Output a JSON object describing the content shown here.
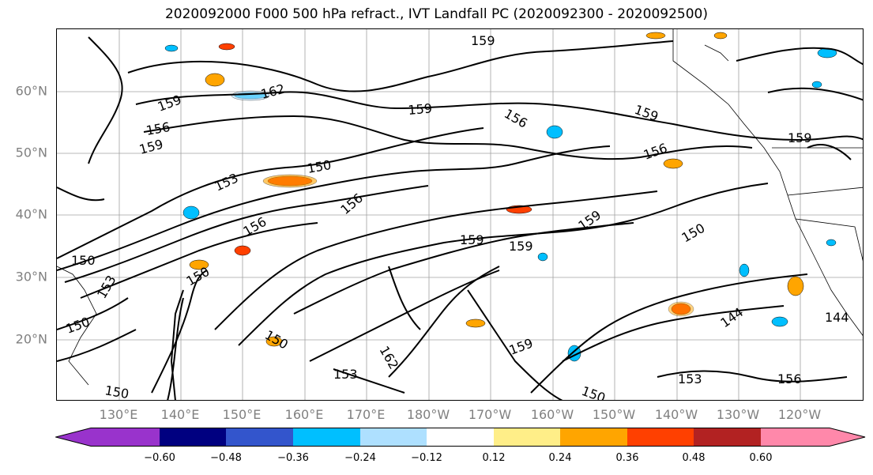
{
  "title": "2020092000 F000 500 hPa refract., IVT Landfall PC (2020092300 - 2020092500)",
  "lat_labels": [
    "60°N",
    "50°N",
    "40°N",
    "30°N",
    "20°N"
  ],
  "lon_labels": [
    "130°E",
    "140°E",
    "150°E",
    "160°E",
    "170°E",
    "180°W",
    "170°W",
    "160°W",
    "150°W",
    "140°W",
    "130°W",
    "120°W"
  ],
  "contour_labels": [
    "159",
    "162",
    "159",
    "156",
    "159",
    "150",
    "153",
    "159",
    "156",
    "159",
    "156",
    "159",
    "150",
    "156",
    "159",
    "156",
    "150",
    "153",
    "150",
    "159",
    "159",
    "150",
    "144",
    "144",
    "150",
    "150",
    "153",
    "159",
    "156",
    "153",
    "150",
    "162"
  ],
  "colorbar": {
    "ticks": [
      "−0.60",
      "−0.48",
      "−0.36",
      "−0.24",
      "−0.12",
      "0.12",
      "0.24",
      "0.36",
      "0.48",
      "0.60"
    ],
    "colors": [
      "#9933cc",
      "#000080",
      "#3355cc",
      "#00bfff",
      "#aee0ff",
      "#ffffff",
      "#ffee88",
      "#ffa500",
      "#ff4000",
      "#b22222",
      "#ff88aa"
    ]
  }
}
